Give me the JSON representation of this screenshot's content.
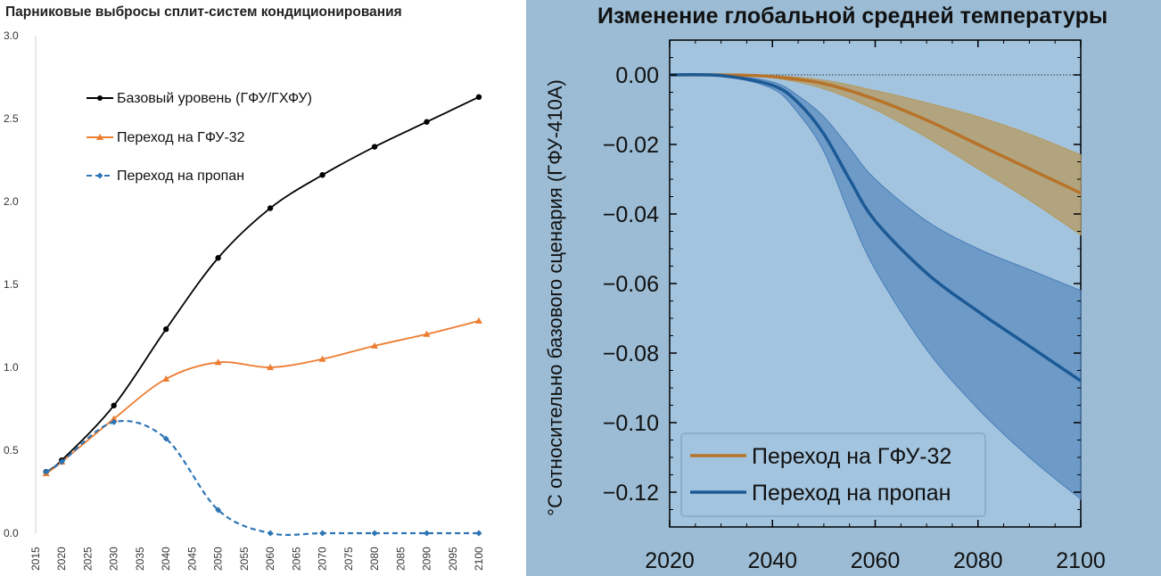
{
  "chart_data": [
    {
      "type": "line",
      "title": "Парниковые выбросы сплит-систем кондиционирования",
      "ylim": [
        0,
        3.0
      ],
      "xlim": [
        2015,
        2100
      ],
      "yticks": [
        "0.0",
        "0.5",
        "1.0",
        "1.5",
        "2.0",
        "2.5",
        "3.0"
      ],
      "xticks": [
        "2015",
        "2020",
        "2025",
        "2030",
        "2035",
        "2040",
        "2045",
        "2050",
        "2055",
        "2060",
        "2065",
        "2070",
        "2075",
        "2080",
        "2085",
        "2090",
        "2095",
        "2100"
      ],
      "grid": false,
      "legend_position": "top-left",
      "series": [
        {
          "name": "Базовый уровень (ГФУ/ГХФУ)",
          "color": "#000000",
          "marker": "circle",
          "dash": "solid",
          "x": [
            2017,
            2020,
            2030,
            2040,
            2050,
            2060,
            2070,
            2080,
            2090,
            2100
          ],
          "y": [
            0.37,
            0.44,
            0.77,
            1.23,
            1.66,
            1.96,
            2.16,
            2.33,
            2.48,
            2.63
          ]
        },
        {
          "name": "Переход на ГФУ-32",
          "color": "#ed7d31",
          "marker": "triangle",
          "dash": "solid",
          "x": [
            2017,
            2020,
            2030,
            2040,
            2050,
            2060,
            2070,
            2080,
            2090,
            2100
          ],
          "y": [
            0.36,
            0.43,
            0.69,
            0.93,
            1.03,
            1.0,
            1.05,
            1.13,
            1.2,
            1.28
          ]
        },
        {
          "name": "Переход на пропан",
          "color": "#2e75b6",
          "marker": "diamond",
          "dash": "dashed",
          "x": [
            2017,
            2020,
            2030,
            2040,
            2050,
            2060,
            2070,
            2080,
            2090,
            2100
          ],
          "y": [
            0.37,
            0.43,
            0.67,
            0.57,
            0.14,
            0.0,
            0.0,
            0.0,
            0.0,
            0.0
          ]
        }
      ]
    },
    {
      "type": "area",
      "title": "Изменение глобальной средней температуры",
      "ylabel": "°C относительно базового сценария (ГФУ-410A)",
      "xlim": [
        2020,
        2100
      ],
      "ylim": [
        -0.13,
        0.01
      ],
      "xticks": [
        "2020",
        "2040",
        "2060",
        "2080",
        "2100"
      ],
      "yticks": [
        "0.00",
        "−0.02",
        "−0.04",
        "−0.06",
        "−0.08",
        "−0.10",
        "−0.12"
      ],
      "grid": false,
      "legend_position": "bottom-left",
      "series": [
        {
          "name": "Переход на ГФУ-32",
          "color": "#b8732a",
          "band_color": "#b59a5e",
          "x": [
            2020,
            2030,
            2040,
            2050,
            2060,
            2070,
            2080,
            2090,
            2100
          ],
          "y": [
            0.0,
            0.0,
            -0.0005,
            -0.0025,
            -0.007,
            -0.013,
            -0.02,
            -0.027,
            -0.034
          ],
          "upper": [
            0.0,
            0.0,
            -0.0002,
            -0.0015,
            -0.0045,
            -0.008,
            -0.012,
            -0.017,
            -0.023
          ],
          "lower": [
            0.0,
            0.0,
            -0.0008,
            -0.004,
            -0.01,
            -0.018,
            -0.027,
            -0.036,
            -0.046
          ]
        },
        {
          "name": "Переход на пропан",
          "color": "#1c5a96",
          "band_color": "#4a7eb8",
          "x": [
            2020,
            2030,
            2040,
            2045,
            2050,
            2055,
            2060,
            2070,
            2080,
            2090,
            2100
          ],
          "y": [
            0.0,
            -0.0002,
            -0.003,
            -0.008,
            -0.017,
            -0.03,
            -0.042,
            -0.057,
            -0.068,
            -0.078,
            -0.088
          ],
          "upper": [
            0.0,
            -0.0001,
            -0.002,
            -0.006,
            -0.012,
            -0.021,
            -0.03,
            -0.042,
            -0.05,
            -0.056,
            -0.062
          ],
          "lower": [
            0.0,
            -0.0003,
            -0.004,
            -0.011,
            -0.022,
            -0.04,
            -0.056,
            -0.079,
            -0.096,
            -0.11,
            -0.122
          ]
        }
      ],
      "zero_line": true
    }
  ]
}
